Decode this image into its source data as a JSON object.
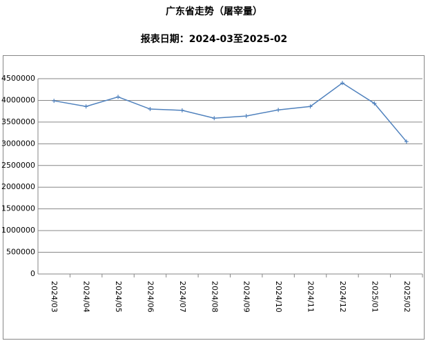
{
  "chart_data": {
    "type": "line",
    "title": "广东省走势（屠宰量）",
    "subtitle": "报表日期：2024-03至2025-02",
    "categories": [
      "2024/03",
      "2024/04",
      "2024/05",
      "2024/06",
      "2024/07",
      "2024/08",
      "2024/09",
      "2024/10",
      "2024/11",
      "2024/12",
      "2025/01",
      "2025/02"
    ],
    "series": [
      {
        "color": "#4f81bd",
        "values": [
          3990000,
          3860000,
          4080000,
          3800000,
          3770000,
          3590000,
          3640000,
          3780000,
          3860000,
          4400000,
          3930000,
          3050000
        ]
      }
    ],
    "ylim": [
      0,
      4500000
    ],
    "yticks": [
      0,
      500000,
      1000000,
      1500000,
      2000000,
      2500000,
      3000000,
      3500000,
      4000000,
      4500000
    ],
    "grid": true
  }
}
